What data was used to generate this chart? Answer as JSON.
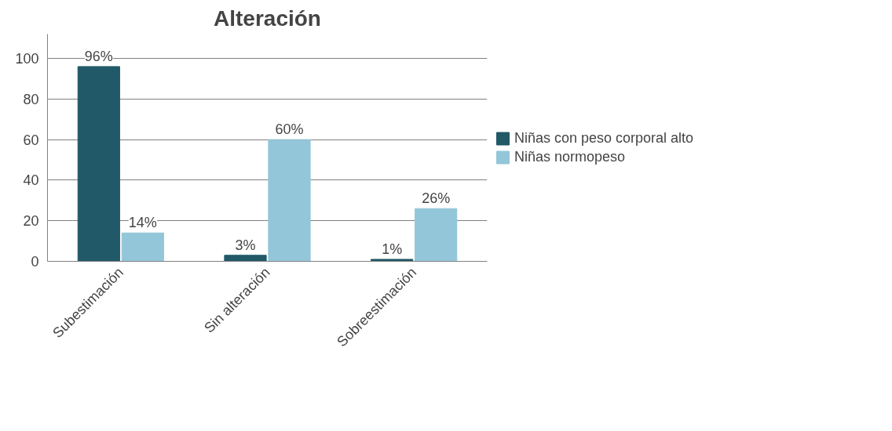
{
  "chart_data": {
    "type": "bar",
    "title": "Alteración",
    "categories": [
      "Subestimación",
      "Sin alteración",
      "Sobreestimación"
    ],
    "series": [
      {
        "name": "Niñas con peso corporal alto",
        "color": "#215968",
        "values": [
          96,
          3,
          1
        ],
        "value_labels": [
          "96%",
          "3%",
          "1%"
        ]
      },
      {
        "name": "Niñas normopeso",
        "color": "#93c6d8",
        "values": [
          14,
          60,
          26
        ],
        "value_labels": [
          "14%",
          "60%",
          "26%"
        ]
      }
    ],
    "ylim": [
      0,
      112
    ],
    "yticks": [
      0,
      20,
      40,
      60,
      80,
      100
    ],
    "grid": "y",
    "legend": "right"
  }
}
